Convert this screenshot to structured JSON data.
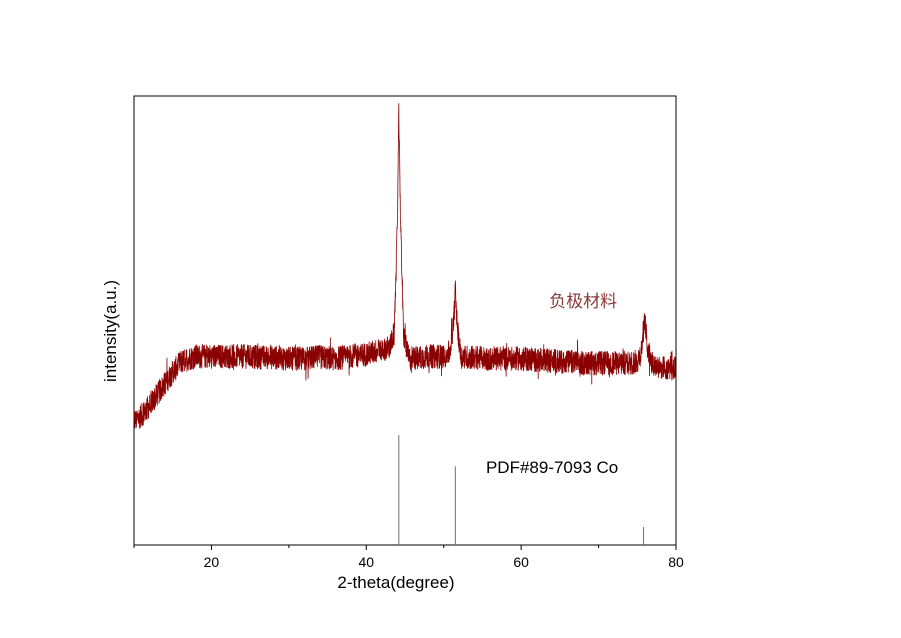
{
  "chart_data": {
    "type": "line",
    "xlabel": "2-theta(degree)",
    "ylabel": "intensity(a.u.)",
    "xlim": [
      10,
      80
    ],
    "x_ticks": [
      20,
      40,
      60,
      80
    ],
    "x_minor_ticks": [
      10,
      30,
      50,
      70
    ],
    "ylim": [
      0,
      100
    ],
    "y_ticks_shown": false,
    "grid": false,
    "series": [
      {
        "name": "负极材料",
        "color": "#8b0000",
        "x": [
          10,
          11,
          12,
          13,
          14,
          15,
          16,
          17,
          18,
          19,
          20,
          22,
          24,
          26,
          28,
          30,
          32,
          34,
          36,
          38,
          40,
          41,
          42,
          43,
          43.6,
          44.0,
          44.2,
          44.4,
          44.8,
          45.5,
          46,
          47,
          48,
          49,
          50,
          50.8,
          51.3,
          51.5,
          51.7,
          52.2,
          53,
          54,
          56,
          58,
          60,
          62,
          64,
          66,
          68,
          70,
          72,
          74,
          75,
          75.5,
          75.8,
          76.0,
          76.3,
          77,
          78,
          79,
          80
        ],
        "values": [
          27.5,
          29,
          31,
          33.5,
          36,
          38.5,
          40.5,
          41.5,
          42,
          42,
          42,
          42,
          42,
          41.8,
          41.8,
          41.5,
          41.5,
          41.8,
          41.5,
          42,
          42.5,
          43,
          43.5,
          44,
          47,
          70,
          96,
          75,
          47,
          41.5,
          41.5,
          41.8,
          42,
          42,
          42,
          43,
          50,
          57,
          50,
          42,
          41.8,
          41.8,
          41.5,
          41.5,
          41.5,
          41.2,
          41,
          40.8,
          40.5,
          40.5,
          40.5,
          40.5,
          40.8,
          43,
          48,
          50,
          44,
          40.5,
          39.5,
          39.5,
          39.5
        ],
        "noise": "high-frequency noise with amplitude ~3 units"
      },
      {
        "name": "PDF#89-7093 Co",
        "type": "stick",
        "color": "#707070",
        "x": [
          44.2,
          51.5,
          75.8
        ],
        "values": [
          24.5,
          17.5,
          4
        ]
      }
    ],
    "annotations": [
      {
        "text": "负极材料",
        "x": 68,
        "y": 53,
        "color": "#8b3a3a"
      },
      {
        "text": "PDF#89-7093 Co",
        "x": 64,
        "y": 16,
        "color": "#000000"
      }
    ]
  }
}
